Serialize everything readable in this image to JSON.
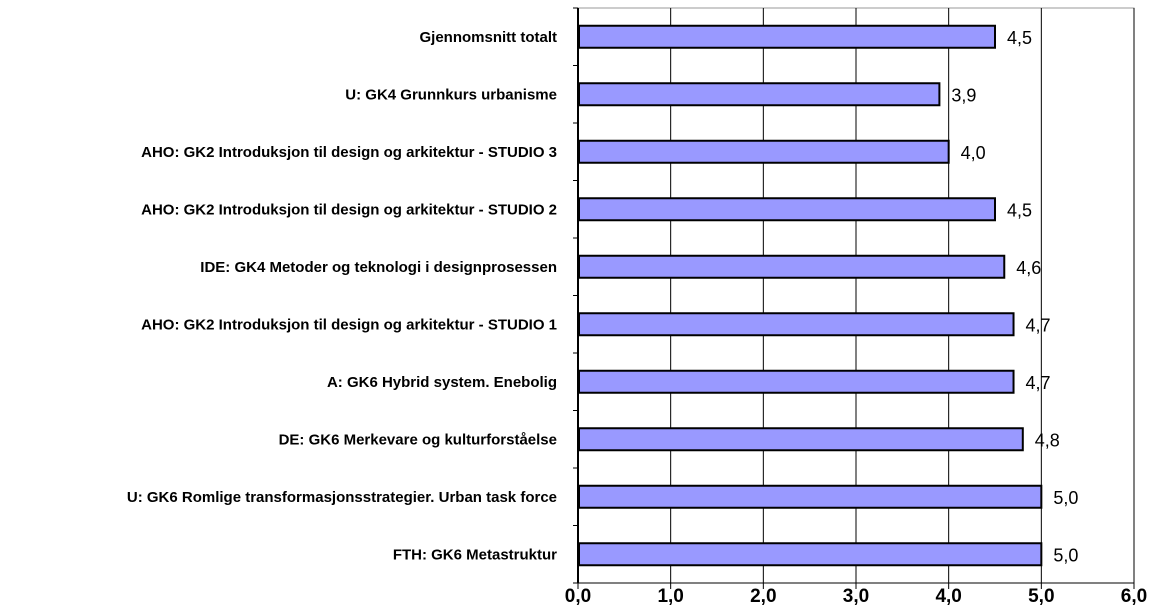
{
  "chart_data": {
    "type": "bar",
    "orientation": "horizontal",
    "title": "",
    "xlabel": "",
    "ylabel": "",
    "categories": [
      "Gjennomsnitt totalt",
      "U: GK4 Grunnkurs urbanisme",
      "AHO: GK2 Introduksjon til design og arkitektur - STUDIO 3",
      "AHO: GK2 Introduksjon til design og arkitektur - STUDIO 2",
      "IDE: GK4 Metoder og teknologi i designprosessen",
      "AHO: GK2 Introduksjon til design og arkitektur - STUDIO 1",
      "A: GK6 Hybrid system. Enebolig",
      "DE: GK6 Merkevare og kulturforståelse",
      "U: GK6 Romlige transformasjonsstrategier. Urban task force",
      "FTH: GK6 Metastruktur"
    ],
    "values": [
      4.5,
      3.9,
      4.0,
      4.5,
      4.6,
      4.7,
      4.7,
      4.8,
      5.0,
      5.0
    ],
    "value_labels": [
      "4,5",
      "3,9",
      "4,0",
      "4,5",
      "4,6",
      "4,7",
      "4,7",
      "4,8",
      "5,0",
      "5,0"
    ],
    "xlim": [
      0,
      6
    ],
    "xticks": [
      "0,0",
      "1,0",
      "2,0",
      "3,0",
      "4,0",
      "5,0",
      "6,0"
    ],
    "grid": true,
    "legend": "none",
    "colors": {
      "bar_fill": "#9999ff",
      "bar_stroke": "#000000",
      "grid": "#000000",
      "axis": "#000000"
    }
  }
}
